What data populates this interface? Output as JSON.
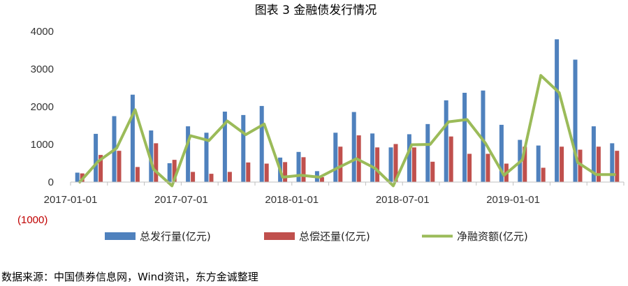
{
  "chart_data": {
    "type": "bar",
    "title": "图表 3 金融债发行情况",
    "xlabel": "",
    "ylabel": "",
    "ylim": [
      -1000,
      4000
    ],
    "y_ticks": [
      4000,
      3000,
      2000,
      1000,
      0
    ],
    "y_negative_tick": "(1000)",
    "x_tick_labels": [
      {
        "label": "2017-01-01",
        "index": 0
      },
      {
        "label": "2017-07-01",
        "index": 6
      },
      {
        "label": "2018-01-01",
        "index": 12
      },
      {
        "label": "2018-07-01",
        "index": 18
      },
      {
        "label": "2019-01-01",
        "index": 24
      }
    ],
    "months": [
      "2017-01",
      "2017-02",
      "2017-03",
      "2017-04",
      "2017-05",
      "2017-06",
      "2017-07",
      "2017-08",
      "2017-09",
      "2017-10",
      "2017-11",
      "2017-12",
      "2018-01",
      "2018-02",
      "2018-03",
      "2018-04",
      "2018-05",
      "2018-06",
      "2018-07",
      "2018-08",
      "2018-09",
      "2018-10",
      "2018-11",
      "2018-12",
      "2019-01",
      "2019-02",
      "2019-03",
      "2019-04",
      "2019-05",
      "2019-06"
    ],
    "series": [
      {
        "name": "总发行量(亿元)",
        "kind": "bar",
        "color": "#4f81bd",
        "values": [
          250,
          1280,
          1750,
          2320,
          1370,
          500,
          1480,
          1310,
          1870,
          1780,
          2020,
          650,
          800,
          290,
          1310,
          1860,
          1290,
          920,
          1270,
          1540,
          2170,
          2370,
          2430,
          1520,
          1120,
          970,
          3790,
          3250,
          1480,
          1030
        ]
      },
      {
        "name": "总偿还量(亿元)",
        "kind": "bar",
        "color": "#c0504d",
        "values": [
          230,
          720,
          830,
          400,
          1030,
          590,
          270,
          220,
          270,
          520,
          490,
          530,
          660,
          130,
          940,
          1240,
          920,
          1010,
          920,
          540,
          1210,
          750,
          750,
          490,
          940,
          380,
          940,
          860,
          940,
          830
        ]
      },
      {
        "name": "净融资额(亿元)",
        "kind": "line",
        "color": "#9bbb59",
        "values": [
          0,
          550,
          900,
          1920,
          340,
          -100,
          1230,
          1100,
          1620,
          1260,
          1540,
          130,
          180,
          130,
          380,
          620,
          370,
          -100,
          990,
          1000,
          1600,
          1660,
          1030,
          180,
          590,
          2830,
          2370,
          520,
          200,
          200
        ]
      }
    ],
    "legend_position": "bottom",
    "source_note": "数据来源：中国债券信息网，Wind资讯，东方金诚整理"
  }
}
